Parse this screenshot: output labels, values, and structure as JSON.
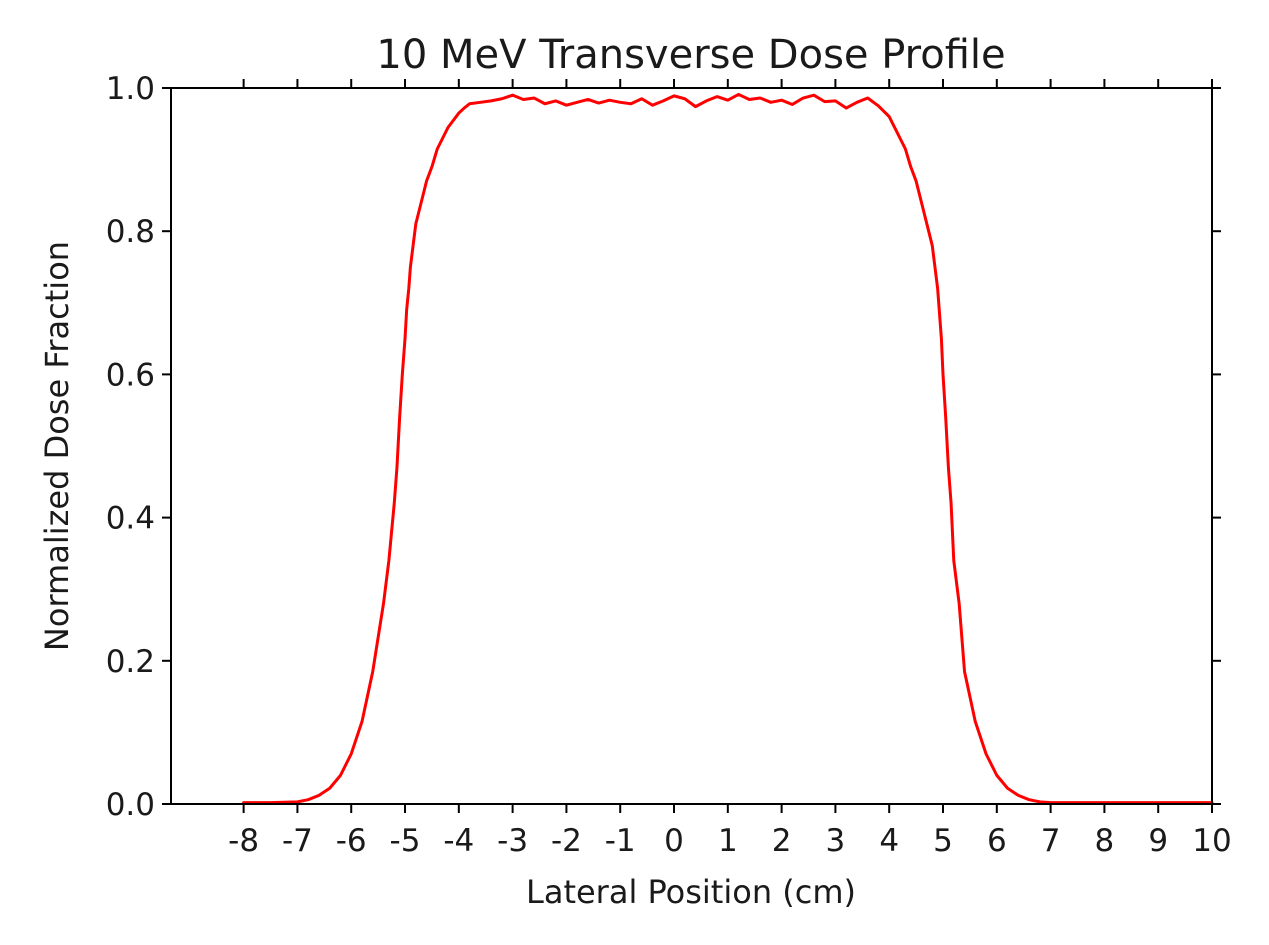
{
  "chart_data": {
    "type": "line",
    "title": "10 MeV Transverse Dose Profile",
    "xlabel": "Lateral Position (cm)",
    "ylabel": "Normalized Dose Fraction",
    "xlim": [
      -9.35,
      10
    ],
    "ylim": [
      0.0,
      1.0
    ],
    "xticks": [
      -8,
      -7,
      -6,
      -5,
      -4,
      -3,
      -2,
      -1,
      0,
      1,
      2,
      3,
      4,
      5,
      6,
      7,
      8,
      9,
      10
    ],
    "xtick_labels": [
      "-8",
      "-7",
      "-6",
      "-5",
      "-4",
      "-3",
      "-2",
      "-1",
      "0",
      "1",
      "2",
      "3",
      "4",
      "5",
      "6",
      "7",
      "8",
      "9",
      "10"
    ],
    "yticks": [
      0.0,
      0.2,
      0.4,
      0.6,
      0.8,
      1.0
    ],
    "ytick_labels": [
      "0.0",
      "0.2",
      "0.4",
      "0.6",
      "0.8",
      "1.0"
    ],
    "grid": false,
    "series": [
      {
        "color": "#ff0000",
        "x": [
          -8.0,
          -7.5,
          -7.0,
          -6.8,
          -6.6,
          -6.4,
          -6.2,
          -6.0,
          -5.8,
          -5.6,
          -5.4,
          -5.3,
          -5.2,
          -5.15,
          -5.1,
          -5.05,
          -5.0,
          -4.97,
          -4.93,
          -4.9,
          -4.85,
          -4.8,
          -4.7,
          -4.6,
          -4.5,
          -4.4,
          -4.3,
          -4.2,
          -4.1,
          -4.0,
          -3.9,
          -3.8,
          -3.6,
          -3.4,
          -3.2,
          -3.0,
          -2.8,
          -2.6,
          -2.4,
          -2.2,
          -2.0,
          -1.8,
          -1.6,
          -1.4,
          -1.2,
          -1.0,
          -0.8,
          -0.6,
          -0.4,
          -0.2,
          0.0,
          0.2,
          0.4,
          0.6,
          0.8,
          1.0,
          1.2,
          1.4,
          1.6,
          1.8,
          2.0,
          2.2,
          2.4,
          2.6,
          2.8,
          3.0,
          3.2,
          3.4,
          3.6,
          3.8,
          4.0,
          4.1,
          4.2,
          4.3,
          4.4,
          4.5,
          4.6,
          4.7,
          4.8,
          4.85,
          4.9,
          4.93,
          4.97,
          5.0,
          5.05,
          5.1,
          5.15,
          5.2,
          5.3,
          5.4,
          5.6,
          5.8,
          6.0,
          6.2,
          6.4,
          6.6,
          6.8,
          7.0,
          7.5,
          8.0,
          9.0,
          10.0
        ],
        "y": [
          0.002,
          0.002,
          0.003,
          0.006,
          0.012,
          0.022,
          0.04,
          0.07,
          0.115,
          0.185,
          0.28,
          0.34,
          0.42,
          0.47,
          0.54,
          0.6,
          0.65,
          0.69,
          0.72,
          0.75,
          0.78,
          0.81,
          0.84,
          0.87,
          0.89,
          0.915,
          0.93,
          0.945,
          0.955,
          0.965,
          0.972,
          0.978,
          0.98,
          0.982,
          0.985,
          0.99,
          0.984,
          0.986,
          0.978,
          0.982,
          0.976,
          0.98,
          0.984,
          0.979,
          0.983,
          0.98,
          0.978,
          0.985,
          0.976,
          0.982,
          0.989,
          0.985,
          0.974,
          0.982,
          0.988,
          0.983,
          0.991,
          0.984,
          0.986,
          0.98,
          0.983,
          0.977,
          0.986,
          0.99,
          0.981,
          0.982,
          0.972,
          0.98,
          0.986,
          0.975,
          0.96,
          0.945,
          0.93,
          0.915,
          0.89,
          0.87,
          0.84,
          0.81,
          0.78,
          0.75,
          0.72,
          0.69,
          0.65,
          0.6,
          0.54,
          0.47,
          0.42,
          0.34,
          0.28,
          0.185,
          0.115,
          0.07,
          0.04,
          0.022,
          0.012,
          0.006,
          0.003,
          0.002,
          0.002,
          0.002,
          0.002,
          0.002
        ]
      }
    ]
  }
}
